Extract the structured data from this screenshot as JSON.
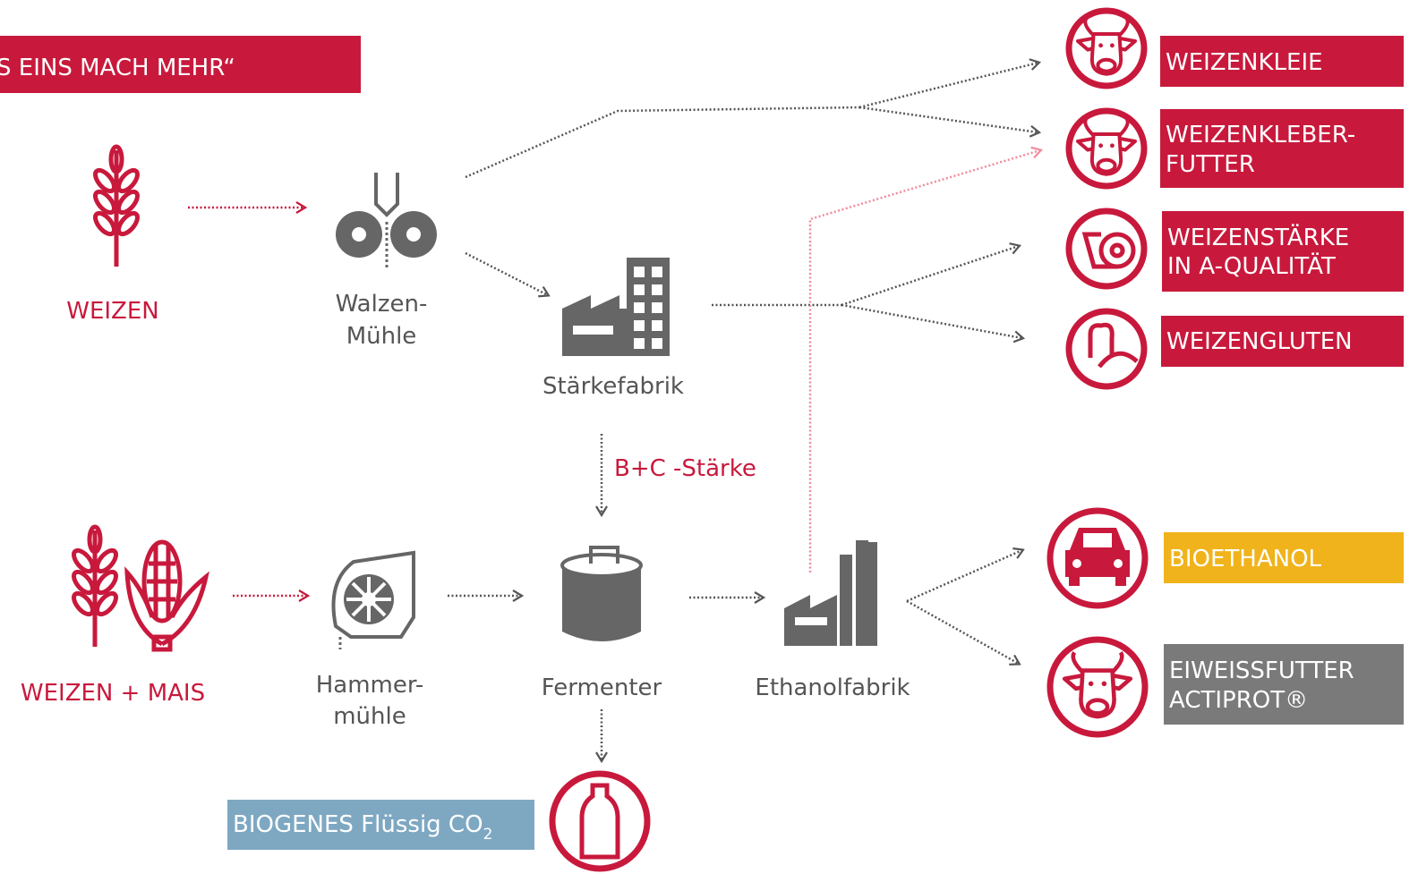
{
  "banner": {
    "title": "S EINS MACH MEHR“"
  },
  "inputs": [
    {
      "label": "WEIZEN"
    },
    {
      "label": "WEIZEN + MAIS"
    }
  ],
  "nodes": [
    {
      "lines": [
        "Walzen-",
        "Mühle"
      ]
    },
    {
      "lines": [
        "Stärkefabrik"
      ]
    },
    {
      "lines": [
        "Hammer-",
        "mühle"
      ]
    },
    {
      "lines": [
        "Fermenter"
      ]
    },
    {
      "lines": [
        "Ethanolfabrik"
      ]
    }
  ],
  "flow_label": "B+C -Stärke",
  "co2": {
    "label": "BIOGENES Flüssig CO",
    "subscript": "2"
  },
  "products": [
    {
      "lines": [
        "WEIZENKLEIE"
      ]
    },
    {
      "lines": [
        "WEIZENKLEBER-",
        "FUTTER"
      ]
    },
    {
      "lines": [
        "WEIZENSTÄRKE",
        "IN A-QUALITÄT"
      ]
    },
    {
      "lines": [
        "WEIZENGLUTEN"
      ]
    },
    {
      "lines": [
        "BIOETHANOL"
      ]
    },
    {
      "lines": [
        "EIWEISSFUTTER",
        "ACTIPROT®"
      ]
    }
  ]
}
